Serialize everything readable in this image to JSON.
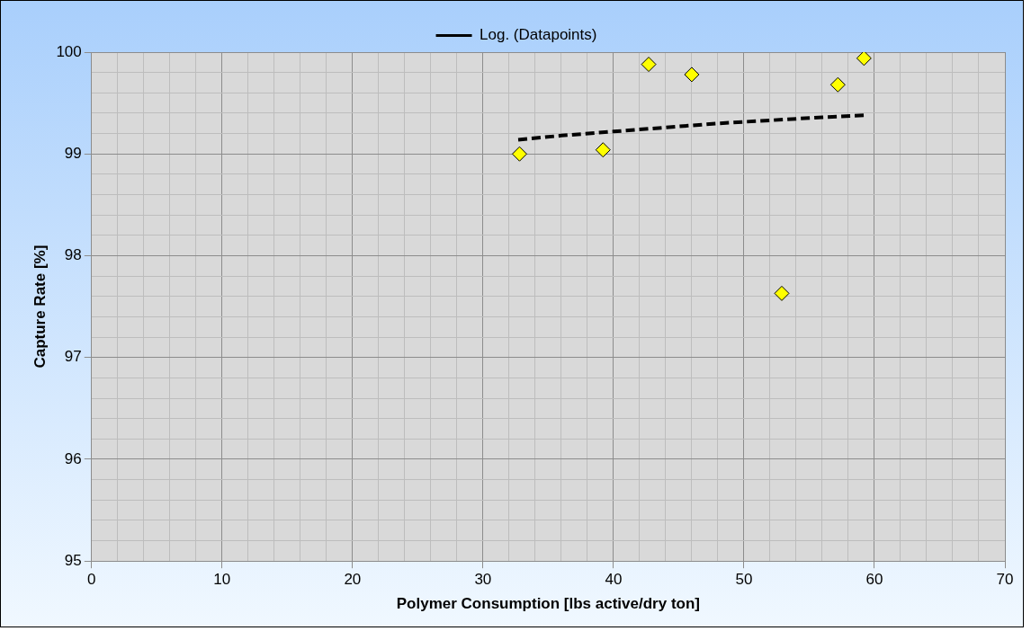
{
  "chart_data": {
    "type": "scatter",
    "xlabel": "Polymer Consumption [lbs active/dry ton]",
    "ylabel": "Capture Rate [%]",
    "xlim": [
      0,
      70
    ],
    "ylim": [
      95,
      100
    ],
    "xticks": [
      0,
      {
        "value": 2,
        "label": null
      },
      {
        "value": 4,
        "label": null
      },
      {
        "value": 6,
        "label": null
      },
      {
        "value": 8,
        "label": null
      },
      10,
      {
        "value": 12,
        "label": null
      },
      {
        "value": 14,
        "label": null
      },
      {
        "value": 16,
        "label": null
      },
      {
        "value": 18,
        "label": null
      },
      20,
      {
        "value": 22,
        "label": null
      },
      {
        "value": 24,
        "label": null
      },
      {
        "value": 26,
        "label": null
      },
      {
        "value": 28,
        "label": null
      },
      30,
      {
        "value": 32,
        "label": null
      },
      {
        "value": 34,
        "label": null
      },
      {
        "value": 36,
        "label": null
      },
      {
        "value": 38,
        "label": null
      },
      40,
      {
        "value": 42,
        "label": null
      },
      {
        "value": 44,
        "label": null
      },
      {
        "value": 46,
        "label": null
      },
      {
        "value": 48,
        "label": null
      },
      50,
      {
        "value": 52,
        "label": null
      },
      {
        "value": 54,
        "label": null
      },
      {
        "value": 56,
        "label": null
      },
      {
        "value": 58,
        "label": null
      },
      60,
      {
        "value": 62,
        "label": null
      },
      {
        "value": 64,
        "label": null
      },
      {
        "value": 66,
        "label": null
      },
      {
        "value": 68,
        "label": null
      },
      70
    ],
    "yticks": [
      95,
      {
        "value": 95.2,
        "label": null
      },
      {
        "value": 95.4,
        "label": null
      },
      {
        "value": 95.6,
        "label": null
      },
      {
        "value": 95.8,
        "label": null
      },
      96,
      {
        "value": 96.2,
        "label": null
      },
      {
        "value": 96.4,
        "label": null
      },
      {
        "value": 96.6,
        "label": null
      },
      {
        "value": 96.8,
        "label": null
      },
      97,
      {
        "value": 97.2,
        "label": null
      },
      {
        "value": 97.4,
        "label": null
      },
      {
        "value": 97.6,
        "label": null
      },
      {
        "value": 97.8,
        "label": null
      },
      98,
      {
        "value": 98.2,
        "label": null
      },
      {
        "value": 98.4,
        "label": null
      },
      {
        "value": 98.6,
        "label": null
      },
      {
        "value": 98.8,
        "label": null
      },
      99,
      {
        "value": 99.2,
        "label": null
      },
      {
        "value": 99.4,
        "label": null
      },
      {
        "value": 99.6,
        "label": null
      },
      {
        "value": 99.8,
        "label": null
      },
      100
    ],
    "grid": true,
    "legend": "top",
    "marker": "diamond",
    "series": [
      {
        "type": "scatter",
        "color": "#ffff00",
        "x": [
          32.8,
          39.2,
          42.7,
          46.0,
          52.9,
          57.2,
          59.2
        ],
        "values": [
          99.0,
          99.04,
          99.88,
          99.78,
          97.63,
          99.68,
          99.94
        ]
      },
      {
        "type": "line",
        "name": "Log. (Datapoints)",
        "color": "#000000",
        "line_style": "dashed",
        "marker": "none",
        "x": [
          32.7,
          36,
          40,
          44,
          48,
          52,
          56,
          59.3
        ],
        "values": [
          99.14,
          99.18,
          99.22,
          99.26,
          99.3,
          99.33,
          99.36,
          99.38
        ]
      }
    ]
  }
}
